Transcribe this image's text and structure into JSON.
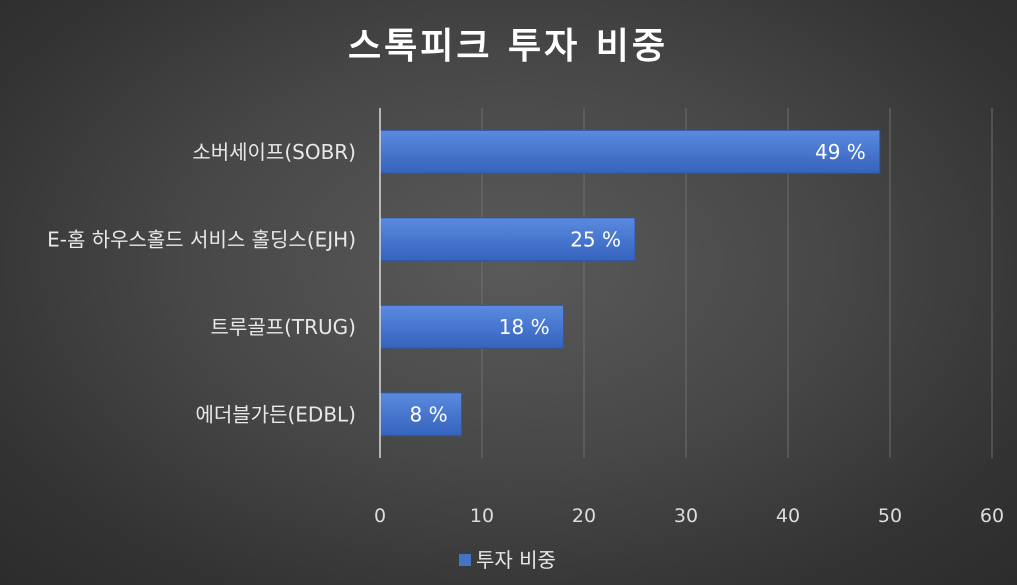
{
  "chart_data": {
    "type": "bar",
    "orientation": "horizontal",
    "title": "스톡피크 투자 비중",
    "categories": [
      "소버세이프(SOBR)",
      "E-홈 하우스홀드 서비스 홀딩스(EJH)",
      "트루골프(TRUG)",
      "에더블가든(EDBL)"
    ],
    "series": [
      {
        "name": "투자 비중",
        "values": [
          49,
          25,
          18,
          8
        ],
        "color": "#4472c4"
      }
    ],
    "data_labels": [
      "49 %",
      "25 %",
      "18 %",
      "8 %"
    ],
    "xlim": [
      0,
      60
    ],
    "x_ticks": [
      0,
      10,
      20,
      30,
      40,
      50,
      60
    ],
    "grid": true,
    "legend_position": "bottom"
  }
}
